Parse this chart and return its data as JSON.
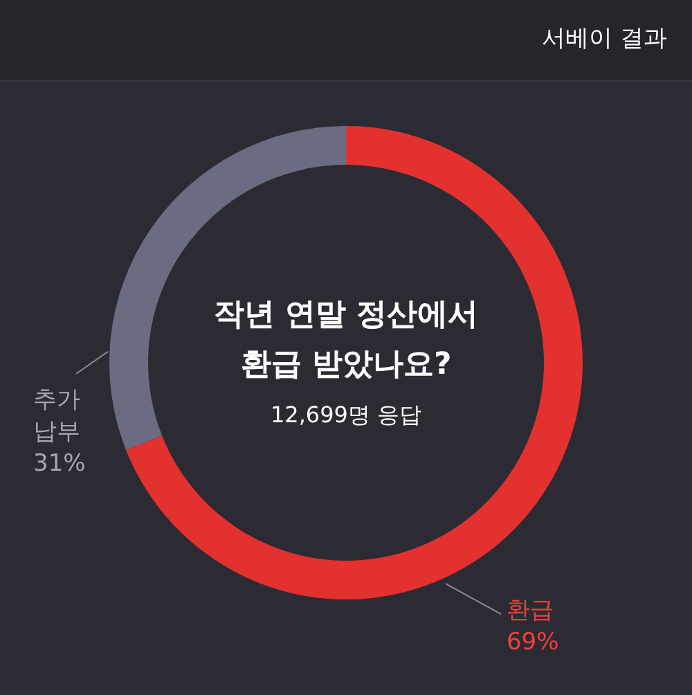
{
  "chart_data": {
    "type": "donut",
    "title": "작년 연말 정산에서 환급 받았나요?",
    "subtitle": "12,699명 응답",
    "annotations": [
      "서베이 결과"
    ],
    "categories": [
      "환급",
      "추가 납부"
    ],
    "values": [
      69,
      31
    ],
    "colors": [
      "#e3312f",
      "#6b6c82"
    ],
    "value_labels": [
      "69%",
      "31%"
    ]
  }
}
